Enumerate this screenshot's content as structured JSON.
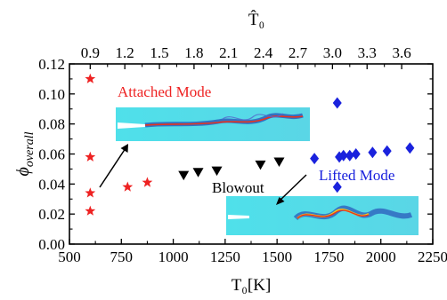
{
  "chart_data": {
    "type": "scatter",
    "xlabel": "T₀[K]",
    "x_top_label": "T̂₀",
    "ylabel_symbol": "ϕ",
    "ylabel_subscript": "overall",
    "xlim": [
      500,
      2250
    ],
    "ylim": [
      0.0,
      0.12
    ],
    "x_ticks": [
      "500",
      "750",
      "1000",
      "1250",
      "1500",
      "1750",
      "2000",
      "2250"
    ],
    "y_ticks": [
      "0.00",
      "0.02",
      "0.04",
      "0.06",
      "0.08",
      "0.10",
      "0.12"
    ],
    "x_top_ticks": [
      "0.9",
      "1.2",
      "1.5",
      "1.8",
      "2.1",
      "2.4",
      "2.7",
      "3.0",
      "3.3",
      "3.6"
    ],
    "x_top_tick_positions_T0": [
      600,
      700,
      800,
      900,
      1000,
      1100,
      1200,
      1300,
      1400,
      1500
    ],
    "grid": false,
    "series": [
      {
        "name": "Attached Mode",
        "marker": "star",
        "color": "#ee2222",
        "x": [
          600,
          600,
          600,
          600,
          780,
          875
        ],
        "y": [
          0.11,
          0.058,
          0.034,
          0.022,
          0.038,
          0.041
        ]
      },
      {
        "name": "Blowout",
        "marker": "triangle-down",
        "color": "#000000",
        "x": [
          1050,
          1120,
          1210,
          1420,
          1510
        ],
        "y": [
          0.046,
          0.048,
          0.049,
          0.053,
          0.055
        ]
      },
      {
        "name": "Lifted Mode",
        "marker": "diamond",
        "color": "#1a22dd",
        "x": [
          1680,
          1790,
          1790,
          1800,
          1820,
          1850,
          1880,
          1960,
          2030,
          2140
        ],
        "y": [
          0.057,
          0.094,
          0.038,
          0.058,
          0.059,
          0.059,
          0.06,
          0.061,
          0.062,
          0.064
        ]
      }
    ],
    "annotations": [
      {
        "text": "Attached Mode",
        "color": "#ee2222"
      },
      {
        "text": "Blowout",
        "color": "#000000"
      },
      {
        "text": "Lifted Mode",
        "color": "#1a22dd"
      }
    ]
  }
}
